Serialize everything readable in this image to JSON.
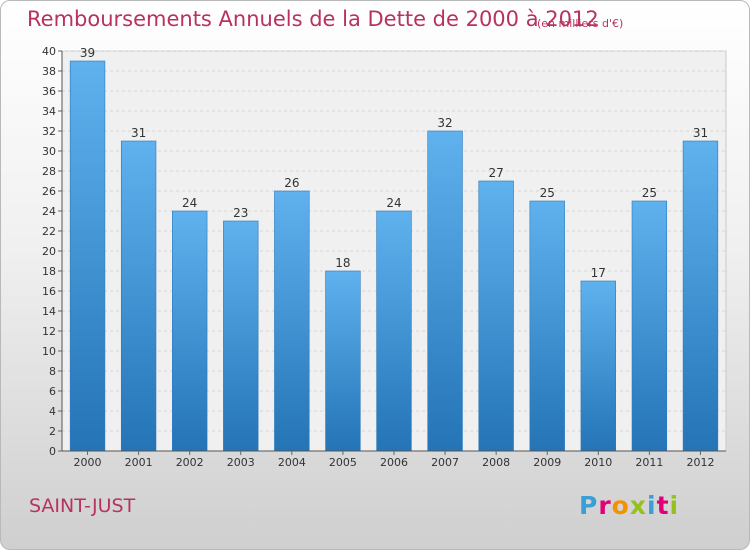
{
  "title": "Remboursements Annuels de la Dette de 2000 à 2012",
  "unit_note": "(en milliers d'€)",
  "commune": "SAINT-JUST",
  "logo": {
    "letters": [
      "P",
      "r",
      "o",
      "x",
      "i",
      "t",
      "i"
    ],
    "colors": [
      "#3a9fd8",
      "#e2007a",
      "#f39200",
      "#95c11f",
      "#3a9fd8",
      "#e2007a",
      "#95c11f"
    ]
  },
  "colors": {
    "bar": "#4a9fe0",
    "bar_dark": "#2a78bd",
    "title": "#b8325f"
  },
  "chart_data": {
    "type": "bar",
    "title": "Remboursements Annuels de la Dette de 2000 à 2012",
    "subtitle": "(en milliers d'€)",
    "categories": [
      "2000",
      "2001",
      "2002",
      "2003",
      "2004",
      "2005",
      "2006",
      "2007",
      "2008",
      "2009",
      "2010",
      "2011",
      "2012"
    ],
    "values": [
      39,
      31,
      24,
      23,
      26,
      18,
      24,
      32,
      27,
      25,
      17,
      25,
      31
    ],
    "ylim": [
      0,
      40
    ],
    "ytick_step": 2,
    "grid": true,
    "legend": "none"
  }
}
